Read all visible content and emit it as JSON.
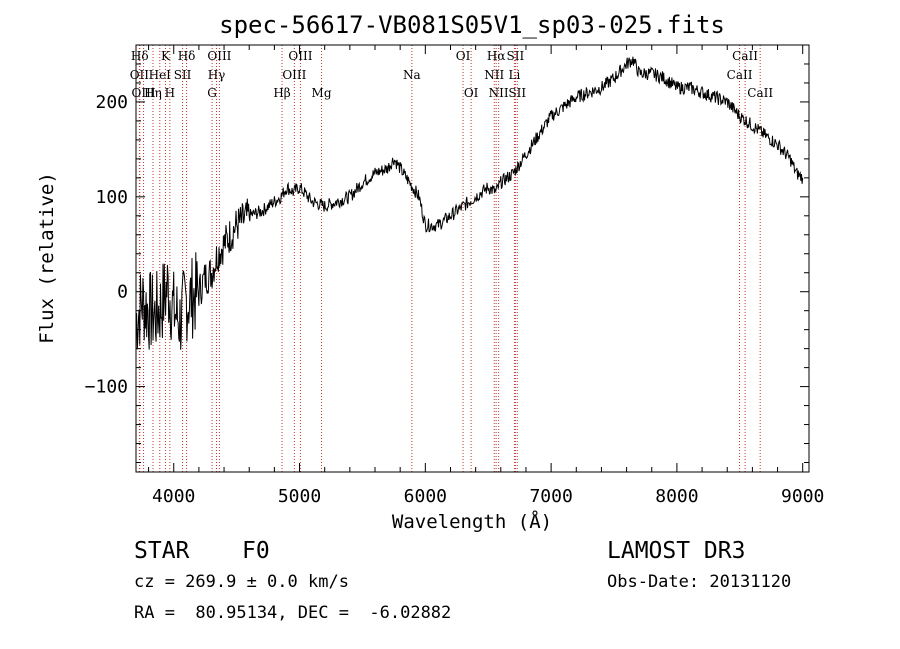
{
  "chart_data": {
    "type": "line",
    "title": "spec-56617-VB081S05V1_sp03-025.fits",
    "xlabel": "Wavelength (Å)",
    "ylabel": "Flux (relative)",
    "xlim": [
      3700,
      9050
    ],
    "ylim": [
      -190,
      260
    ],
    "xticks": [
      4000,
      5000,
      6000,
      7000,
      8000,
      9000
    ],
    "xtick_labels": [
      "4000",
      "5000",
      "6000",
      "7000",
      "8000",
      "9000"
    ],
    "yticks": [
      -100,
      0,
      100,
      200
    ],
    "ytick_labels": [
      "−100",
      "0",
      "100",
      "200"
    ],
    "series": [
      {
        "name": "spectrum",
        "x": [
          3700,
          3750,
          3800,
          3850,
          3900,
          3950,
          4000,
          4050,
          4100,
          4150,
          4200,
          4250,
          4300,
          4350,
          4400,
          4500,
          4600,
          4700,
          4800,
          4850,
          4900,
          4950,
          5000,
          5100,
          5200,
          5300,
          5400,
          5500,
          5600,
          5700,
          5750,
          5800,
          5850,
          5900,
          5950,
          6000,
          6100,
          6200,
          6300,
          6400,
          6500,
          6560,
          6600,
          6700,
          6800,
          6900,
          7000,
          7100,
          7200,
          7300,
          7400,
          7500,
          7600,
          7650,
          7700,
          7800,
          7900,
          8000,
          8100,
          8200,
          8300,
          8400,
          8500,
          8600,
          8700,
          8800,
          8900,
          8950,
          9000
        ],
        "y": [
          -30,
          -10,
          -20,
          -25,
          -15,
          5,
          -20,
          -30,
          -10,
          -5,
          0,
          15,
          20,
          40,
          50,
          70,
          80,
          85,
          95,
          100,
          110,
          105,
          110,
          95,
          90,
          95,
          100,
          115,
          125,
          130,
          140,
          130,
          120,
          110,
          100,
          70,
          70,
          80,
          90,
          100,
          110,
          105,
          115,
          125,
          145,
          165,
          185,
          195,
          205,
          210,
          215,
          225,
          240,
          245,
          230,
          230,
          225,
          215,
          215,
          210,
          205,
          200,
          185,
          175,
          165,
          155,
          140,
          125,
          120
        ]
      }
    ],
    "lines": [
      {
        "label": "Hδ",
        "wl": 3730,
        "tier": 1
      },
      {
        "label": "OII",
        "wl": 3727,
        "tier": 2
      },
      {
        "label": "OIII",
        "wl": 3760,
        "tier": 3
      },
      {
        "label": "K",
        "wl": 3934,
        "tier": 1
      },
      {
        "label": "HeI",
        "wl": 3889,
        "tier": 2
      },
      {
        "label": "Hη",
        "wl": 3835,
        "tier": 3
      },
      {
        "label": "Hδ",
        "wl": 4102,
        "tier": 1
      },
      {
        "label": "SII",
        "wl": 4070,
        "tier": 2
      },
      {
        "label": "H",
        "wl": 3969,
        "tier": 3
      },
      {
        "label": "OIII",
        "wl": 4363,
        "tier": 1
      },
      {
        "label": "Hγ",
        "wl": 4340,
        "tier": 2
      },
      {
        "label": "G",
        "wl": 4305,
        "tier": 3
      },
      {
        "label": "OIII",
        "wl": 5007,
        "tier": 1
      },
      {
        "label": "OIII",
        "wl": 4959,
        "tier": 2
      },
      {
        "label": "Hβ",
        "wl": 4861,
        "tier": 3
      },
      {
        "label": "Mg",
        "wl": 5175,
        "tier": 3
      },
      {
        "label": "Na",
        "wl": 5893,
        "tier": 2
      },
      {
        "label": "OI",
        "wl": 6300,
        "tier": 1
      },
      {
        "label": "OI",
        "wl": 6364,
        "tier": 3
      },
      {
        "label": "Hα",
        "wl": 6563,
        "tier": 1
      },
      {
        "label": "SII",
        "wl": 6716,
        "tier": 1
      },
      {
        "label": "NII",
        "wl": 6548,
        "tier": 2
      },
      {
        "label": "Li",
        "wl": 6708,
        "tier": 2
      },
      {
        "label": "NII",
        "wl": 6583,
        "tier": 3
      },
      {
        "label": "SII",
        "wl": 6731,
        "tier": 3
      },
      {
        "label": "CaII",
        "wl": 8542,
        "tier": 1
      },
      {
        "label": "CaII",
        "wl": 8498,
        "tier": 2
      },
      {
        "label": "CaII",
        "wl": 8662,
        "tier": 3
      }
    ]
  },
  "info": {
    "class": "STAR",
    "subclass": "F0",
    "survey": "LAMOST DR3",
    "cz": "cz = 269.9 ± 0.0 km/s",
    "obs_date": "Obs-Date: 20131120",
    "radec": "RA =  80.95134, DEC =  -6.02882"
  },
  "colors": {
    "line": "#000000",
    "marker": "#c0392b",
    "axis": "#000000",
    "background": "#ffffff"
  }
}
